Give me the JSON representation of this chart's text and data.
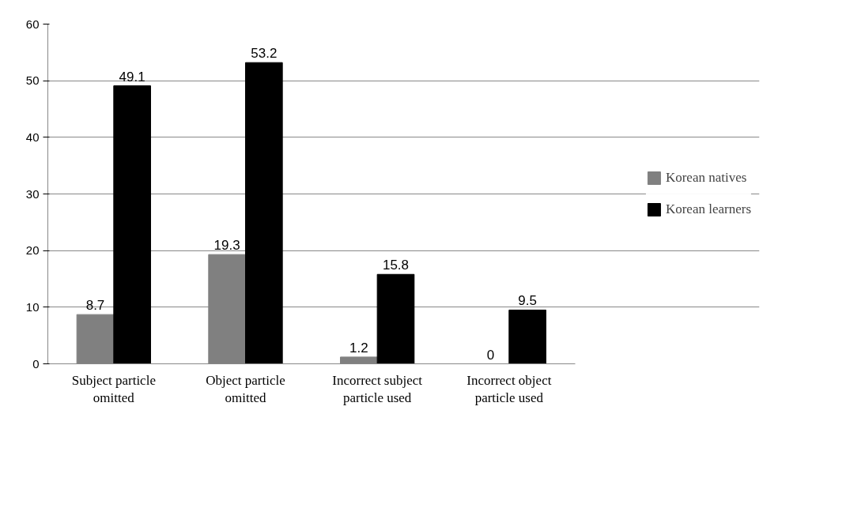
{
  "chart_data": {
    "type": "bar",
    "categories": [
      "Subject particle omitted",
      "Object particle omitted",
      "Incorrect subject particle used",
      "Incorrect object particle used"
    ],
    "series": [
      {
        "name": "Korean natives",
        "color": "#808080",
        "values": [
          8.7,
          19.3,
          1.2,
          0
        ]
      },
      {
        "name": "Korean learners",
        "color": "#000000",
        "values": [
          49.1,
          53.2,
          15.8,
          9.5
        ]
      }
    ],
    "ylim": [
      0,
      60
    ],
    "yticks": [
      0,
      10,
      20,
      30,
      40,
      50,
      60
    ],
    "grid": "y",
    "legend": "right",
    "data_labels": true
  }
}
